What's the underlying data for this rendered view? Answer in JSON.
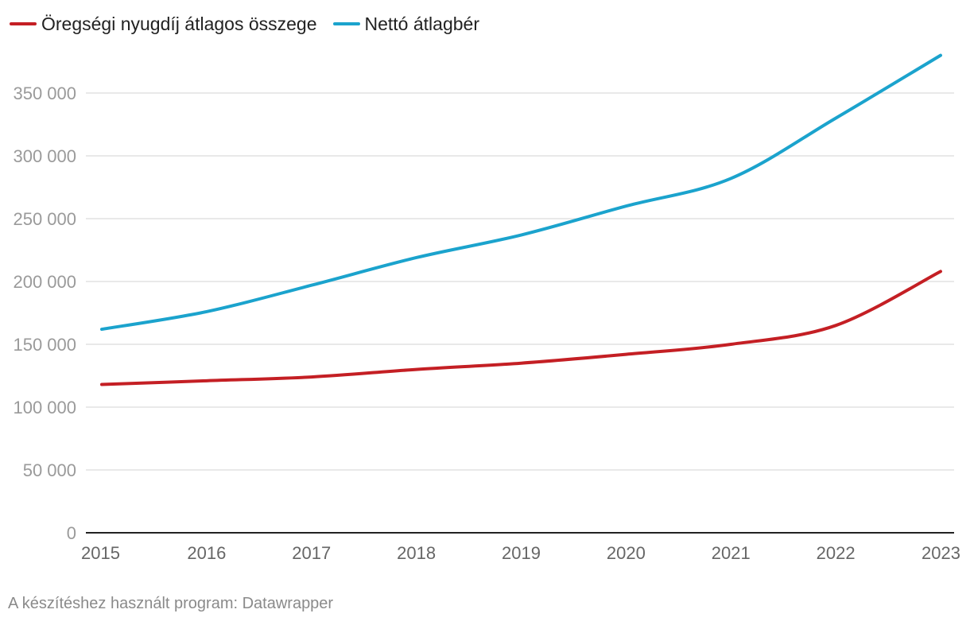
{
  "chart_data": {
    "type": "line",
    "categories": [
      "2015",
      "2016",
      "2017",
      "2018",
      "2019",
      "2020",
      "2021",
      "2022",
      "2023"
    ],
    "ylim": [
      0,
      400000
    ],
    "yticks": [
      0,
      50000,
      100000,
      150000,
      200000,
      250000,
      300000,
      350000
    ],
    "ytick_labels": [
      "0",
      "50 000",
      "100 000",
      "150 000",
      "200 000",
      "250 000",
      "300 000",
      "350 000"
    ],
    "series": [
      {
        "name": "Öregségi nyugdíj átlagos összege",
        "color": "#c41f24",
        "values": [
          118000,
          121000,
          124000,
          130000,
          135000,
          142000,
          150000,
          165000,
          208000
        ]
      },
      {
        "name": "Nettó átlagbér",
        "color": "#1ba3cd",
        "values": [
          162000,
          176000,
          197000,
          219000,
          237000,
          260000,
          282000,
          330000,
          380000
        ]
      }
    ],
    "grid": true,
    "legend": "top-left"
  },
  "footer": {
    "credit": "A készítéshez használt program: Datawrapper"
  }
}
